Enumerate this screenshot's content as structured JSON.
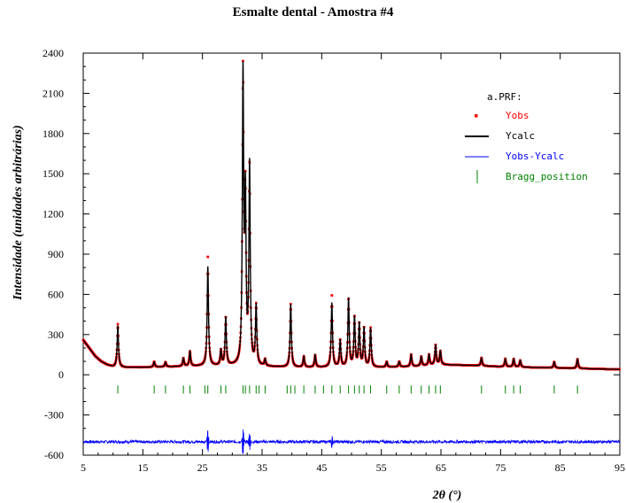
{
  "chart_data": {
    "type": "line",
    "title": "Esmalte dental - Amostra #4",
    "xlabel": "2θ (°)",
    "ylabel": "Intensidade (unidades arbitrárias)",
    "xlim": [
      5,
      95
    ],
    "ylim": [
      -600,
      2400
    ],
    "xticks": [
      5,
      15,
      25,
      35,
      45,
      55,
      65,
      75,
      85,
      95
    ],
    "yticks": [
      -600,
      -300,
      0,
      300,
      600,
      900,
      1200,
      1500,
      1800,
      2100,
      2400
    ],
    "legend_title": "a.PRF:",
    "legend_position": "top-right",
    "background_level": {
      "x": [
        5.0,
        6.0,
        7.0,
        8.0,
        9.0,
        10.0,
        12.0,
        15.0,
        20.0,
        25.0,
        30.0,
        35.0,
        40.0,
        45.0,
        50.0,
        55.0,
        60.0,
        65.0,
        70.0,
        75.0,
        80.0,
        85.0,
        90.0,
        95.0
      ],
      "y": [
        260,
        200,
        140,
        100,
        75,
        60,
        55,
        55,
        60,
        65,
        65,
        60,
        55,
        55,
        55,
        55,
        60,
        75,
        70,
        60,
        55,
        50,
        45,
        40
      ]
    },
    "peaks": [
      {
        "x": 10.8,
        "height": 310,
        "obs_height": 320
      },
      {
        "x": 16.9,
        "height": 40
      },
      {
        "x": 18.8,
        "height": 35
      },
      {
        "x": 21.8,
        "height": 60
      },
      {
        "x": 22.9,
        "height": 110
      },
      {
        "x": 25.9,
        "height": 740,
        "obs_height": 830
      },
      {
        "x": 28.1,
        "height": 110
      },
      {
        "x": 28.9,
        "height": 360
      },
      {
        "x": 31.8,
        "height": 2140
      },
      {
        "x": 32.2,
        "height": 1200
      },
      {
        "x": 32.9,
        "height": 1480
      },
      {
        "x": 34.0,
        "height": 440
      },
      {
        "x": 35.5,
        "height": 50
      },
      {
        "x": 39.8,
        "height": 470
      },
      {
        "x": 42.0,
        "height": 80
      },
      {
        "x": 43.9,
        "height": 90
      },
      {
        "x": 46.7,
        "height": 480,
        "obs_height": 545
      },
      {
        "x": 48.1,
        "height": 200
      },
      {
        "x": 49.5,
        "height": 510
      },
      {
        "x": 50.5,
        "height": 370
      },
      {
        "x": 51.3,
        "height": 320
      },
      {
        "x": 52.1,
        "height": 290
      },
      {
        "x": 53.2,
        "height": 290
      },
      {
        "x": 55.9,
        "height": 40
      },
      {
        "x": 58.0,
        "height": 40
      },
      {
        "x": 60.0,
        "height": 90
      },
      {
        "x": 61.7,
        "height": 70
      },
      {
        "x": 63.0,
        "height": 80
      },
      {
        "x": 64.1,
        "height": 150
      },
      {
        "x": 64.9,
        "height": 100
      },
      {
        "x": 71.8,
        "height": 60
      },
      {
        "x": 75.8,
        "height": 60
      },
      {
        "x": 77.2,
        "height": 60
      },
      {
        "x": 78.3,
        "height": 50
      },
      {
        "x": 84.0,
        "height": 45
      },
      {
        "x": 87.9,
        "height": 70
      }
    ],
    "difference_offset": -500,
    "difference_spikes": [
      {
        "x": 25.9,
        "amp": 80
      },
      {
        "x": 31.8,
        "amp": 100
      },
      {
        "x": 32.9,
        "amp": 60
      },
      {
        "x": 46.7,
        "amp": 40
      }
    ],
    "bragg_y_range": [
      -80,
      -140
    ],
    "bragg_positions": [
      10.8,
      16.9,
      18.8,
      21.8,
      22.9,
      25.4,
      25.9,
      28.1,
      28.9,
      31.8,
      32.2,
      32.9,
      34.0,
      34.5,
      35.5,
      39.2,
      39.8,
      40.5,
      42.0,
      43.9,
      45.3,
      46.7,
      48.1,
      49.5,
      50.5,
      51.3,
      52.1,
      53.2,
      55.9,
      58.0,
      60.0,
      61.7,
      63.0,
      64.1,
      64.9,
      71.8,
      75.8,
      77.2,
      78.3,
      84.0,
      87.9
    ],
    "series": [
      {
        "name": "Yobs",
        "color": "#ff0000",
        "style": "points"
      },
      {
        "name": "Ycalc",
        "color": "#000000",
        "style": "line"
      },
      {
        "name": "Yobs-Ycalc",
        "color": "#0000ff",
        "style": "line"
      },
      {
        "name": "Bragg_position",
        "color": "#008000",
        "style": "ticks"
      }
    ],
    "grid": false
  }
}
